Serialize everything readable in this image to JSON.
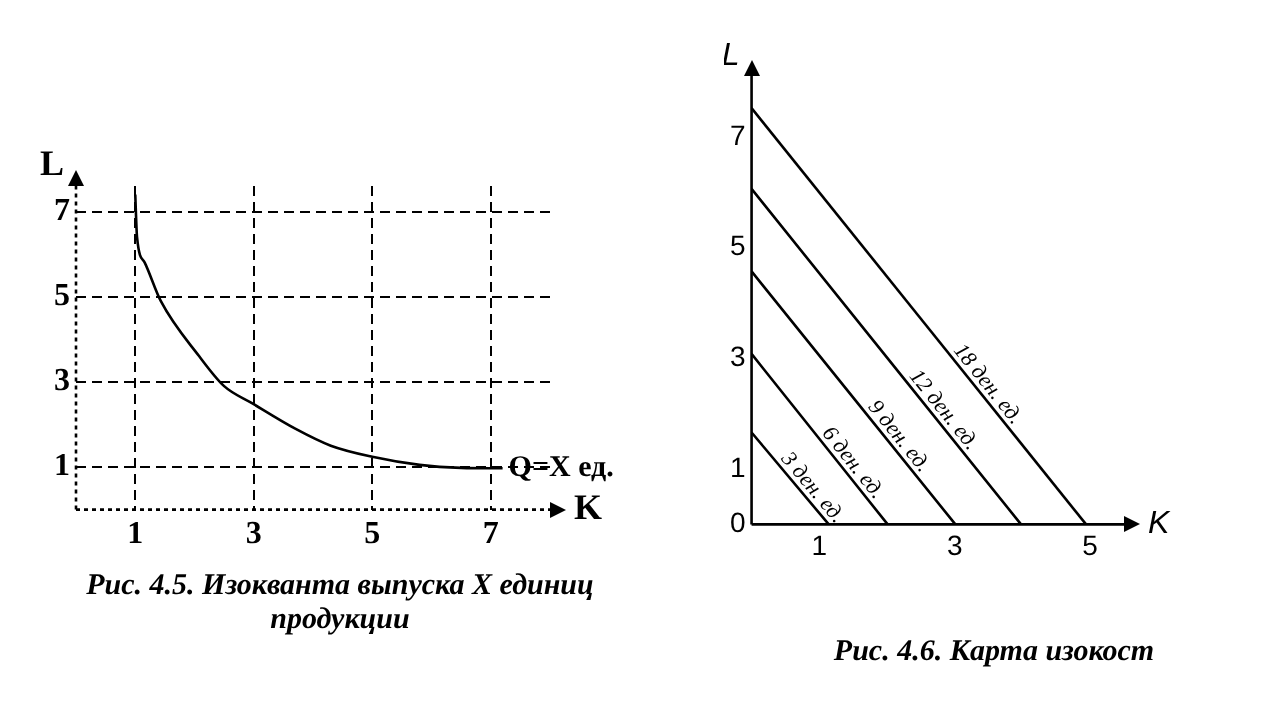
{
  "chart_data": [
    {
      "type": "line",
      "title": "Рис. 4.5. Изокванта выпуска X единиц продукции",
      "xlabel": "K",
      "ylabel": "L",
      "x": [
        1,
        1.03,
        1.16,
        1.43,
        2.08,
        2.5,
        2.97,
        3.7,
        4.3,
        5,
        5.8,
        6.5,
        7.2
      ],
      "series": [
        {
          "name": "Q=X ед.",
          "color": "#000000",
          "values": [
            7.4,
            6.4,
            5.8,
            4.9,
            3.6,
            2.9,
            2.5,
            1.9,
            1.5,
            1.24,
            1.05,
            0.98,
            0.97
          ]
        }
      ],
      "xlim": [
        0,
        8
      ],
      "ylim": [
        0,
        7.6
      ],
      "xticks": [
        1,
        3,
        5,
        7
      ],
      "yticks": [
        1,
        3,
        5,
        7
      ],
      "grid": true,
      "marker": "none",
      "line_style": "solid",
      "legend": false
    },
    {
      "type": "line",
      "title": "Рис. 4.6. Карта изокост",
      "xlabel": "K",
      "ylabel": "L",
      "series": [
        {
          "name": "3 ден. ед.",
          "color": "#000000",
          "x": [
            0,
            1.14
          ],
          "values": [
            1.66,
            0
          ]
        },
        {
          "name": "6 ден. ед.",
          "color": "#000000",
          "x": [
            0,
            2.01
          ],
          "values": [
            3.08,
            0
          ]
        },
        {
          "name": "9 ден. ед.",
          "color": "#000000",
          "x": [
            0,
            3.01
          ],
          "values": [
            4.57,
            0
          ]
        },
        {
          "name": "12 ден. ед.",
          "color": "#000000",
          "x": [
            0,
            3.98
          ],
          "values": [
            6.06,
            0
          ]
        },
        {
          "name": "18 ден. ед.",
          "color": "#000000",
          "x": [
            0,
            4.94
          ],
          "values": [
            7.52,
            0
          ]
        }
      ],
      "xlim": [
        0,
        5.5
      ],
      "ylim": [
        0,
        8.1
      ],
      "xticks": [
        1,
        3,
        5
      ],
      "yticks": [
        0,
        1,
        3,
        5,
        7
      ],
      "grid": false,
      "marker": "none",
      "line_style": "solid",
      "legend": false
    }
  ]
}
